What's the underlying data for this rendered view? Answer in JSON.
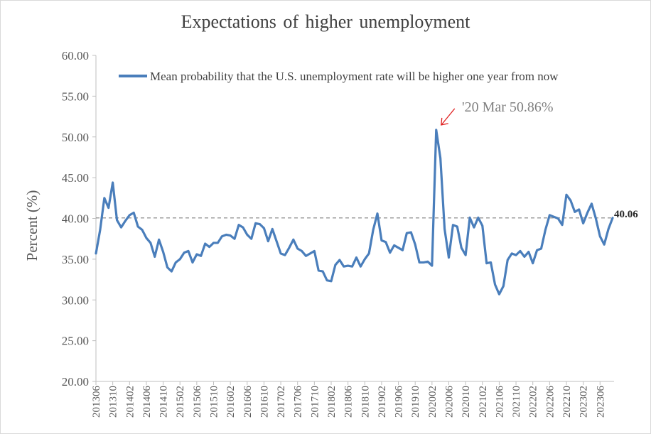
{
  "chart_data": {
    "type": "line",
    "title": "Expectations of higher unemployment",
    "ylabel": "Percent (%)",
    "xlabel": "",
    "ylim": [
      20,
      60
    ],
    "yticks": [
      "20.00",
      "25.00",
      "30.00",
      "35.00",
      "40.00",
      "45.00",
      "50.00",
      "55.00",
      "60.00"
    ],
    "x_ticks": [
      "201306",
      "201310",
      "201402",
      "201406",
      "201410",
      "201502",
      "201506",
      "201510",
      "201602",
      "201606",
      "201610",
      "201702",
      "201706",
      "201710",
      "201802",
      "201806",
      "201810",
      "201902",
      "201906",
      "201910",
      "202002",
      "202006",
      "202010",
      "202102",
      "202106",
      "202110",
      "202202",
      "202206",
      "202210",
      "202302",
      "202306"
    ],
    "legend_position": "top",
    "grid": false,
    "series": [
      {
        "name": "Mean probability that the U.S. unemployment rate will be higher one year from now",
        "color": "#4a7ebb",
        "start": "2013-06",
        "values": [
          35.7,
          38.6,
          42.5,
          41.3,
          44.4,
          39.8,
          38.9,
          39.7,
          40.4,
          40.7,
          39.0,
          38.6,
          37.6,
          37.0,
          35.3,
          37.4,
          35.9,
          34.0,
          33.5,
          34.6,
          35.0,
          35.8,
          36.0,
          34.6,
          35.6,
          35.4,
          36.9,
          36.5,
          37.0,
          37.0,
          37.8,
          38.0,
          37.9,
          37.5,
          39.2,
          38.9,
          38.0,
          37.5,
          39.4,
          39.3,
          38.8,
          37.2,
          38.7,
          37.2,
          35.7,
          35.5,
          36.4,
          37.4,
          36.3,
          36.0,
          35.4,
          35.7,
          36.0,
          33.6,
          33.5,
          32.4,
          32.3,
          34.3,
          34.9,
          34.1,
          34.2,
          34.1,
          35.2,
          34.1,
          35.0,
          35.7,
          38.6,
          40.6,
          37.3,
          37.1,
          35.8,
          36.7,
          36.4,
          36.1,
          38.2,
          38.3,
          36.8,
          34.6,
          34.6,
          34.7,
          34.2,
          50.86,
          47.4,
          38.7,
          35.2,
          39.2,
          39.0,
          36.4,
          35.5,
          40.1,
          38.9,
          40.1,
          39.1,
          34.5,
          34.6,
          31.9,
          30.7,
          31.7,
          34.9,
          35.7,
          35.5,
          36.0,
          35.3,
          35.9,
          34.5,
          36.1,
          36.3,
          38.6,
          40.4,
          40.2,
          40.0,
          39.2,
          42.9,
          42.2,
          40.8,
          41.1,
          39.4,
          40.7,
          41.8,
          40.0,
          37.8,
          36.8,
          38.7,
          40.06
        ]
      }
    ],
    "reference_line": {
      "value": 40.06,
      "style": "dashed",
      "color": "#808080"
    },
    "end_label": "40.06",
    "annotations": [
      {
        "text": "'20 Mar 50.86%",
        "x": "2020-03",
        "y": 50.86,
        "arrow_color": "#e02020"
      }
    ]
  }
}
